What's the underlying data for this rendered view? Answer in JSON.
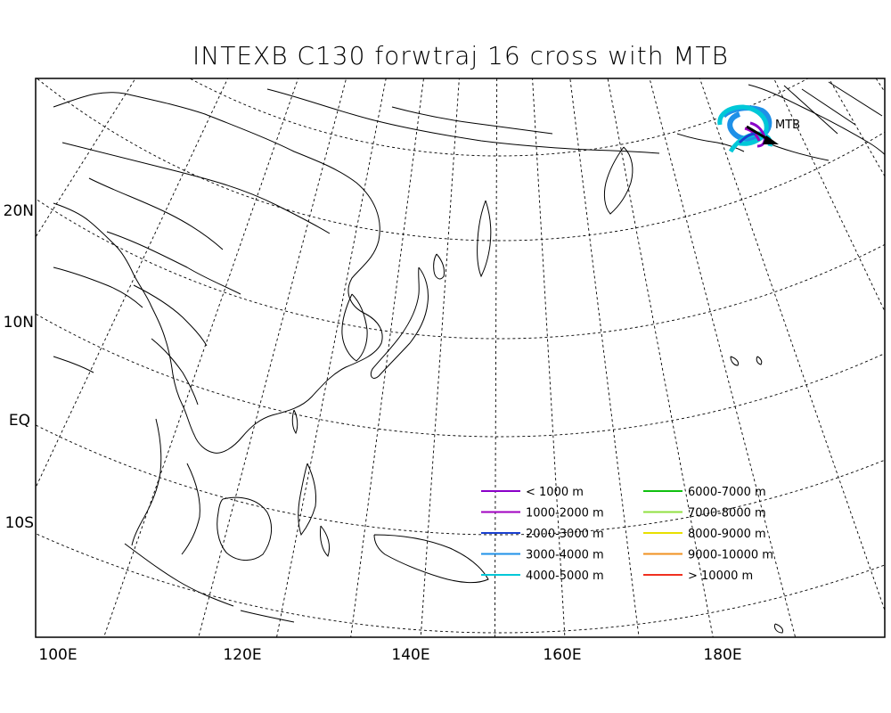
{
  "title": "INTEXB C130 forwtraj 16 cross with MTB",
  "lat_labels": [
    "20N",
    "10N",
    "EQ",
    "10S"
  ],
  "lon_labels": [
    "100E",
    "120E",
    "140E",
    "160E",
    "180E"
  ],
  "marker_label": "MTB",
  "legend": [
    {
      "label": "< 1000 m",
      "color": "#8a00c8"
    },
    {
      "label": "1000-2000 m",
      "color": "#a000c0"
    },
    {
      "label": "2000-3000 m",
      "color": "#1a40d0"
    },
    {
      "label": "3000-4000 m",
      "color": "#1e90e8"
    },
    {
      "label": "4000-5000 m",
      "color": "#00c8d8"
    },
    {
      "label": "6000-7000 m",
      "color": "#10c010"
    },
    {
      "label": "7000-8000 m",
      "color": "#90e040"
    },
    {
      "label": "8000-9000 m",
      "color": "#e8e000"
    },
    {
      "label": "9000-10000 m",
      "color": "#f09020"
    },
    {
      "label": "> 10000 m",
      "color": "#f03020"
    }
  ],
  "trajectory_colors": {
    "low": "#8a00c8",
    "mid": "#1e90e8",
    "high": "#00c8d8",
    "marker": "#000000"
  }
}
